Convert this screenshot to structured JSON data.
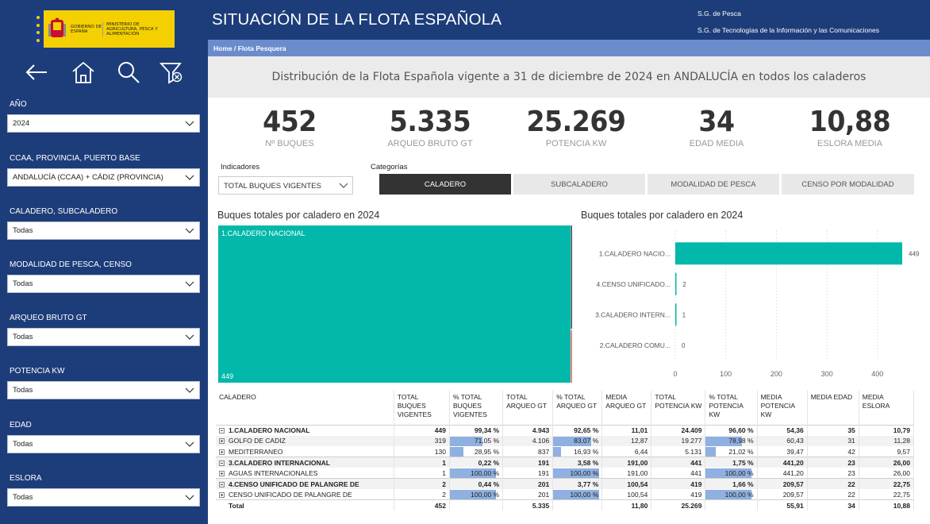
{
  "logo": {
    "gobierno": "Gobierno de España",
    "ministerio": "Ministerio de Agricultura, Pesca y Alimentación"
  },
  "nav_icons": [
    "back-arrow-icon",
    "home-icon",
    "search-icon",
    "clear-filter-icon"
  ],
  "filters": [
    {
      "label": "AÑO",
      "value": "2024"
    },
    {
      "label": "CCAA, PROVINCIA, PUERTO BASE",
      "value": "ANDALUCÍA (CCAA) + CÁDIZ (PROVINCIA)"
    },
    {
      "label": "CALADERO, SUBCALADERO",
      "value": "Todas"
    },
    {
      "label": "MODALIDAD DE PESCA, CENSO",
      "value": "Todas"
    },
    {
      "label": "ARQUEO BRUTO GT",
      "value": "Todas"
    },
    {
      "label": "POTENCIA KW",
      "value": "Todas"
    },
    {
      "label": "EDAD",
      "value": "Todas"
    },
    {
      "label": "ESLORA",
      "value": "Todas"
    }
  ],
  "header": {
    "title": "SITUACIÓN DE LA FLOTA ESPAÑOLA",
    "sub1": "S.G. de Pesca",
    "sub2": "S.G. de Tecnologías de la Información y las Comunicaciones"
  },
  "breadcrumb": {
    "home": "Home /",
    "current": "Flota Pesquera"
  },
  "subtitle": "Distribución de la Flota Española vigente a 31 de diciembre de 2024 en ANDALUCÍA en todos los caladeros",
  "kpis": [
    {
      "value": "452",
      "label": "Nº BUQUES"
    },
    {
      "value": "5.335",
      "label": "ARQUEO BRUTO GT"
    },
    {
      "value": "25.269",
      "label": "POTENCIA KW"
    },
    {
      "value": "34",
      "label": "EDAD MEDIA"
    },
    {
      "value": "10,88",
      "label": "ESLORA MEDIA"
    }
  ],
  "indicadores": {
    "label": "Indicadores",
    "value": "TOTAL BUQUES VIGENTES"
  },
  "categorias": {
    "label": "Categorías",
    "tabs": [
      "CALADERO",
      "SUBCALADERO",
      "MODALIDAD DE PESCA",
      "CENSO POR MODALIDAD"
    ],
    "active": 0
  },
  "treemap": {
    "title": "Buques totales por caladero en 2024",
    "label": "1.CALADERO NACIONAL",
    "value_label": "449",
    "color": "#01b8aa"
  },
  "chart_data": {
    "type": "bar",
    "orientation": "horizontal",
    "title": "Buques totales por caladero en 2024",
    "categories": [
      "1.CALADERO NACIO...",
      "4.CENSO UNIFICADO...",
      "3.CALADERO INTERN...",
      "2.CALADERO COMU..."
    ],
    "values": [
      449,
      2,
      1,
      0
    ],
    "value_labels": [
      "449",
      "2",
      "1",
      "0"
    ],
    "xlim": [
      0,
      450
    ],
    "xticks": [
      "0",
      "100",
      "200",
      "300",
      "400"
    ],
    "color": "#01b8aa",
    "grid": true
  },
  "table": {
    "headers": [
      "CALADERO",
      "TOTAL BUQUES VIGENTES",
      "% TOTAL BUQUES VIGENTES",
      "TOTAL ARQUEO GT",
      "% TOTAL ARQUEO GT",
      "MEDIA ARQUEO GT",
      "TOTAL POTENCIA KW",
      "% TOTAL POTENCIA KW",
      "MEDIA POTENCIA KW",
      "MEDIA EDAD",
      "MEDIA ESLORA"
    ],
    "rows": [
      {
        "level": 1,
        "name": "1.CALADERO NACIONAL",
        "cells": [
          "449",
          "99,34 %",
          "4.943",
          "92,65 %",
          "11,01",
          "24.409",
          "96,60 %",
          "54,36",
          "35",
          "10,79"
        ],
        "bars": [
          0,
          0,
          0
        ]
      },
      {
        "level": 2,
        "name": "GOLFO DE CADIZ",
        "cells": [
          "319",
          "71,05 %",
          "4.106",
          "83,07 %",
          "12,87",
          "19.277",
          "78,98 %",
          "60,43",
          "31",
          "11,28"
        ],
        "bars": [
          71.05,
          83.07,
          78.98
        ]
      },
      {
        "level": 2,
        "name": "MEDITERRANEO",
        "cells": [
          "130",
          "28,95 %",
          "837",
          "16,93 %",
          "6,44",
          "5.131",
          "21,02 %",
          "39,47",
          "42",
          "9,57"
        ],
        "bars": [
          28.95,
          16.93,
          21.02
        ]
      },
      {
        "level": 1,
        "name": "3.CALADERO INTERNACIONAL",
        "cells": [
          "1",
          "0,22 %",
          "191",
          "3,58 %",
          "191,00",
          "441",
          "1,75 %",
          "441,20",
          "23",
          "26,00"
        ],
        "bars": [
          0,
          0,
          0
        ]
      },
      {
        "level": 2,
        "name": "AGUAS INTERNACIONALES",
        "cells": [
          "1",
          "100,00 %",
          "191",
          "100,00 %",
          "191,00",
          "441",
          "100,00 %",
          "441,20",
          "23",
          "26,00"
        ],
        "bars": [
          100,
          100,
          100
        ]
      },
      {
        "level": 1,
        "name": "4.CENSO UNIFICADO DE PALANGRE DE",
        "cells": [
          "2",
          "0,44 %",
          "201",
          "3,77 %",
          "100,54",
          "419",
          "1,66 %",
          "209,57",
          "22",
          "22,75"
        ],
        "bars": [
          0,
          0,
          0
        ]
      },
      {
        "level": 2,
        "name": "CENSO UNIFICADO DE PALANGRE DE",
        "cells": [
          "2",
          "100,00 %",
          "201",
          "100,00 %",
          "100,54",
          "419",
          "100,00 %",
          "209,57",
          "22",
          "22,75"
        ],
        "bars": [
          100,
          100,
          100
        ]
      }
    ],
    "total": {
      "name": "Total",
      "cells": [
        "452",
        "",
        "5.335",
        "",
        "11,80",
        "25.269",
        "",
        "55,91",
        "34",
        "10,88"
      ]
    }
  }
}
